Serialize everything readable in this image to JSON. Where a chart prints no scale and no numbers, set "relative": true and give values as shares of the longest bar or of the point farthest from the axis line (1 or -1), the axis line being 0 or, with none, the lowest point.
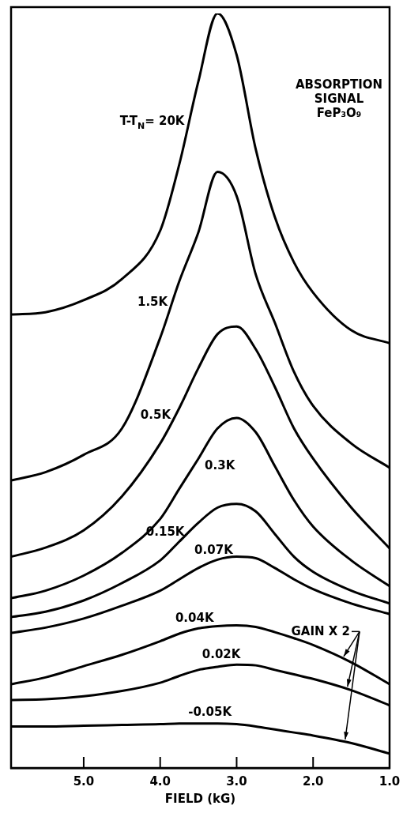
{
  "chart_data": {
    "type": "line",
    "title": "ABSORPTION SIGNAL",
    "subtitle": "FeP₃O₉",
    "xlabel": "FIELD (kG)",
    "relative": true,
    "xlim": [
      5.95,
      1.0
    ],
    "xticks": [
      {
        "value": 5,
        "label": "5.0"
      },
      {
        "value": 4,
        "label": "4.0"
      },
      {
        "value": 3,
        "label": "3.0"
      },
      {
        "value": 2,
        "label": "2.0"
      },
      {
        "value": 1,
        "label": "1.0"
      }
    ],
    "x": [
      5.95,
      5.5,
      5.0,
      4.5,
      4.0,
      3.75,
      3.5,
      3.25,
      3.0,
      2.75,
      2.5,
      2.25,
      2.0,
      1.5,
      1.0
    ],
    "series": [
      {
        "name": "T-T$_{N}$= 20K",
        "color": "#000000",
        "values": [
          0.601,
          0.604,
          0.62,
          0.648,
          0.712,
          0.8,
          0.91,
          1,
          0.945,
          0.82,
          0.73,
          0.67,
          0.63,
          0.58,
          0.563
        ]
      },
      {
        "name": "1.5K",
        "color": "#000000",
        "values": [
          0.381,
          0.392,
          0.415,
          0.45,
          0.57,
          0.645,
          0.71,
          0.79,
          0.758,
          0.654,
          0.59,
          0.525,
          0.48,
          0.43,
          0.398
        ]
      },
      {
        "name": "0.5K",
        "color": "#000000",
        "values": [
          0.28,
          0.292,
          0.315,
          0.36,
          0.43,
          0.477,
          0.53,
          0.575,
          0.585,
          0.555,
          0.505,
          0.45,
          0.41,
          0.345,
          0.291
        ]
      },
      {
        "name": "0.3K",
        "color": "#000000",
        "values": [
          0.225,
          0.235,
          0.255,
          0.285,
          0.33,
          0.37,
          0.41,
          0.45,
          0.464,
          0.445,
          0.4,
          0.355,
          0.32,
          0.275,
          0.241
        ]
      },
      {
        "name": "0.15K",
        "color": "#000000",
        "values": [
          0.2,
          0.207,
          0.222,
          0.245,
          0.275,
          0.3,
          0.325,
          0.345,
          0.35,
          0.34,
          0.31,
          0.28,
          0.26,
          0.235,
          0.218
        ]
      },
      {
        "name": "0.07K",
        "color": "#000000",
        "values": [
          0.179,
          0.186,
          0.198,
          0.215,
          0.235,
          0.25,
          0.265,
          0.276,
          0.28,
          0.278,
          0.265,
          0.25,
          0.237,
          0.218,
          0.204
        ]
      },
      {
        "name": "0.04K",
        "color": "#000000",
        "values": [
          0.111,
          0.12,
          0.135,
          0.15,
          0.168,
          0.178,
          0.185,
          0.188,
          0.189,
          0.187,
          0.18,
          0.172,
          0.163,
          0.14,
          0.111
        ]
      },
      {
        "name": "0.02K",
        "color": "#000000",
        "values": [
          0.09,
          0.091,
          0.095,
          0.102,
          0.113,
          0.122,
          0.13,
          0.134,
          0.137,
          0.136,
          0.13,
          0.124,
          0.118,
          0.103,
          0.083
        ]
      },
      {
        "name": "-0.05K",
        "color": "#000000",
        "values": [
          0.055,
          0.055,
          0.056,
          0.057,
          0.058,
          0.059,
          0.059,
          0.059,
          0.058,
          0.055,
          0.051,
          0.047,
          0.043,
          0.033,
          0.019
        ]
      }
    ],
    "annotations": [
      "GAIN X 2"
    ],
    "legend": false,
    "grid": false,
    "marker": "none",
    "line_style": "solid"
  }
}
